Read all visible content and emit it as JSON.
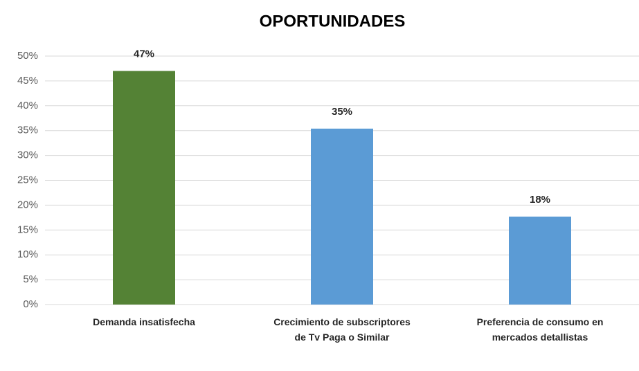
{
  "chart_data": {
    "type": "bar",
    "title": "OPORTUNIDADES",
    "categories": [
      "Demanda insatisfecha",
      "Crecimiento de subscriptores de Tv Paga o Similar",
      "Preferencia de consumo en mercados detallistas"
    ],
    "values": [
      47,
      35.4,
      17.7
    ],
    "value_labels": [
      "47%",
      "35%",
      "18%"
    ],
    "colors": [
      "#548235",
      "#5b9bd5",
      "#5b9bd5"
    ],
    "ylim": [
      0,
      50
    ],
    "yticks": [
      {
        "value": 0,
        "label": "0%"
      },
      {
        "value": 5,
        "label": "5%"
      },
      {
        "value": 10,
        "label": "10%"
      },
      {
        "value": 15,
        "label": "15%"
      },
      {
        "value": 20,
        "label": "20%"
      },
      {
        "value": 25,
        "label": "25%"
      },
      {
        "value": 30,
        "label": "30%"
      },
      {
        "value": 35,
        "label": "35%"
      },
      {
        "value": 40,
        "label": "40%"
      },
      {
        "value": 45,
        "label": "45%"
      },
      {
        "value": 50,
        "label": "50%"
      }
    ],
    "grid": true
  }
}
